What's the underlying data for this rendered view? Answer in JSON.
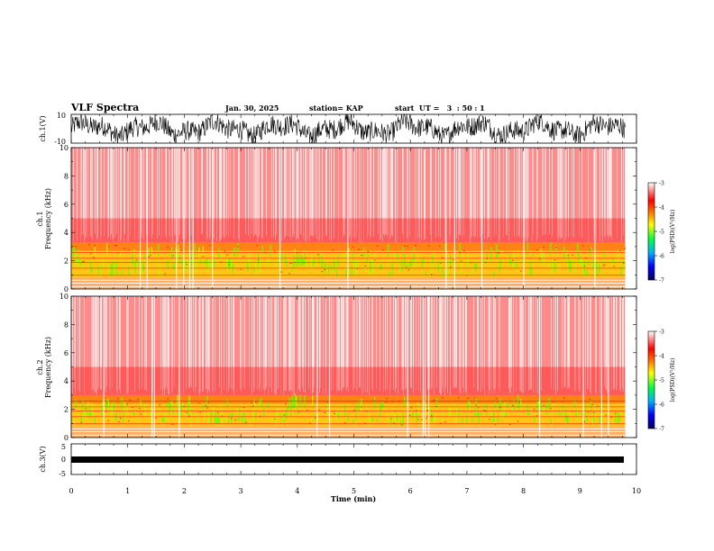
{
  "header": {
    "title": "VLF Spectra",
    "date": "Jan. 30, 2025",
    "station": "station= KAP",
    "start": "start  UT =   3  : 50 : 1"
  },
  "chart_data": [
    {
      "type": "line",
      "name": "ch1-waveform",
      "ylabel": "ch.1(V)",
      "ylim": [
        -10,
        10
      ],
      "ytick_labels": [
        "10",
        "-10"
      ],
      "xlim": [
        0,
        10
      ]
    },
    {
      "type": "heatmap",
      "name": "ch1-spectrogram",
      "ylabel_top": "ch.1",
      "ylabel": "Frequency (kHz)",
      "ylim": [
        0,
        10
      ],
      "yticks": [
        0,
        2,
        4,
        6,
        8,
        10
      ],
      "xlim": [
        0,
        10
      ],
      "data_end_time": 9.8,
      "colorbar": {
        "label": "log(PSD)(V²/Hz)",
        "min": -7,
        "max": -3,
        "ticks": [
          -3,
          -4,
          -5,
          -6,
          -7
        ]
      }
    },
    {
      "type": "heatmap",
      "name": "ch2-spectrogram",
      "ylabel_top": "ch.2",
      "ylabel": "Frequency (kHz)",
      "ylim": [
        0,
        10
      ],
      "yticks": [
        0,
        2,
        4,
        6,
        8,
        10
      ],
      "xlim": [
        0,
        10
      ],
      "data_end_time": 9.8,
      "colorbar": {
        "label": "log(PSD)(V²/Hz)",
        "min": -7,
        "max": -3,
        "ticks": [
          -3,
          -4,
          -5,
          -6,
          -7
        ]
      }
    },
    {
      "type": "line",
      "name": "ch3-waveform",
      "ylabel": "ch.3(V)",
      "ylim": [
        -5,
        5
      ],
      "ytick_labels": [
        "5",
        "0",
        "-5"
      ],
      "xlim": [
        0,
        10
      ],
      "xlabel": "Time (min)",
      "xticks": [
        0,
        1,
        2,
        3,
        4,
        5,
        6,
        7,
        8,
        9,
        10
      ]
    }
  ],
  "colors": {
    "spectrum": [
      "#000080",
      "#0000ff",
      "#00c0ff",
      "#00ff00",
      "#ffff00",
      "#ff8000",
      "#ff0000",
      "#ffffff"
    ],
    "line": "#000000"
  }
}
